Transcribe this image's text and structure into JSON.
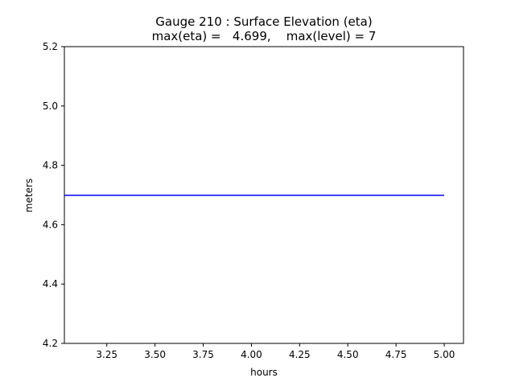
{
  "chart_data": {
    "type": "line",
    "title_line1": "Gauge 210 : Surface Elevation (eta)",
    "title_line2": "max(eta) =   4.699,    max(level) = 7",
    "xlabel": "hours",
    "ylabel": "meters",
    "xlim": [
      3.03,
      5.1
    ],
    "ylim": [
      4.2,
      5.2
    ],
    "xticks": [
      3.25,
      3.5,
      3.75,
      4.0,
      4.25,
      4.5,
      4.75,
      5.0
    ],
    "xtick_labels": [
      "3.25",
      "3.50",
      "3.75",
      "4.00",
      "4.25",
      "4.50",
      "4.75",
      "5.00"
    ],
    "yticks": [
      4.2,
      4.4,
      4.6,
      4.8,
      5.0,
      5.2
    ],
    "ytick_labels": [
      "4.2",
      "4.4",
      "4.6",
      "4.8",
      "5.0",
      "5.2"
    ],
    "grid": false,
    "series": [
      {
        "color": "#0000ff",
        "x": [
          3.03,
          5.0
        ],
        "y": [
          4.699,
          4.699
        ]
      }
    ]
  }
}
